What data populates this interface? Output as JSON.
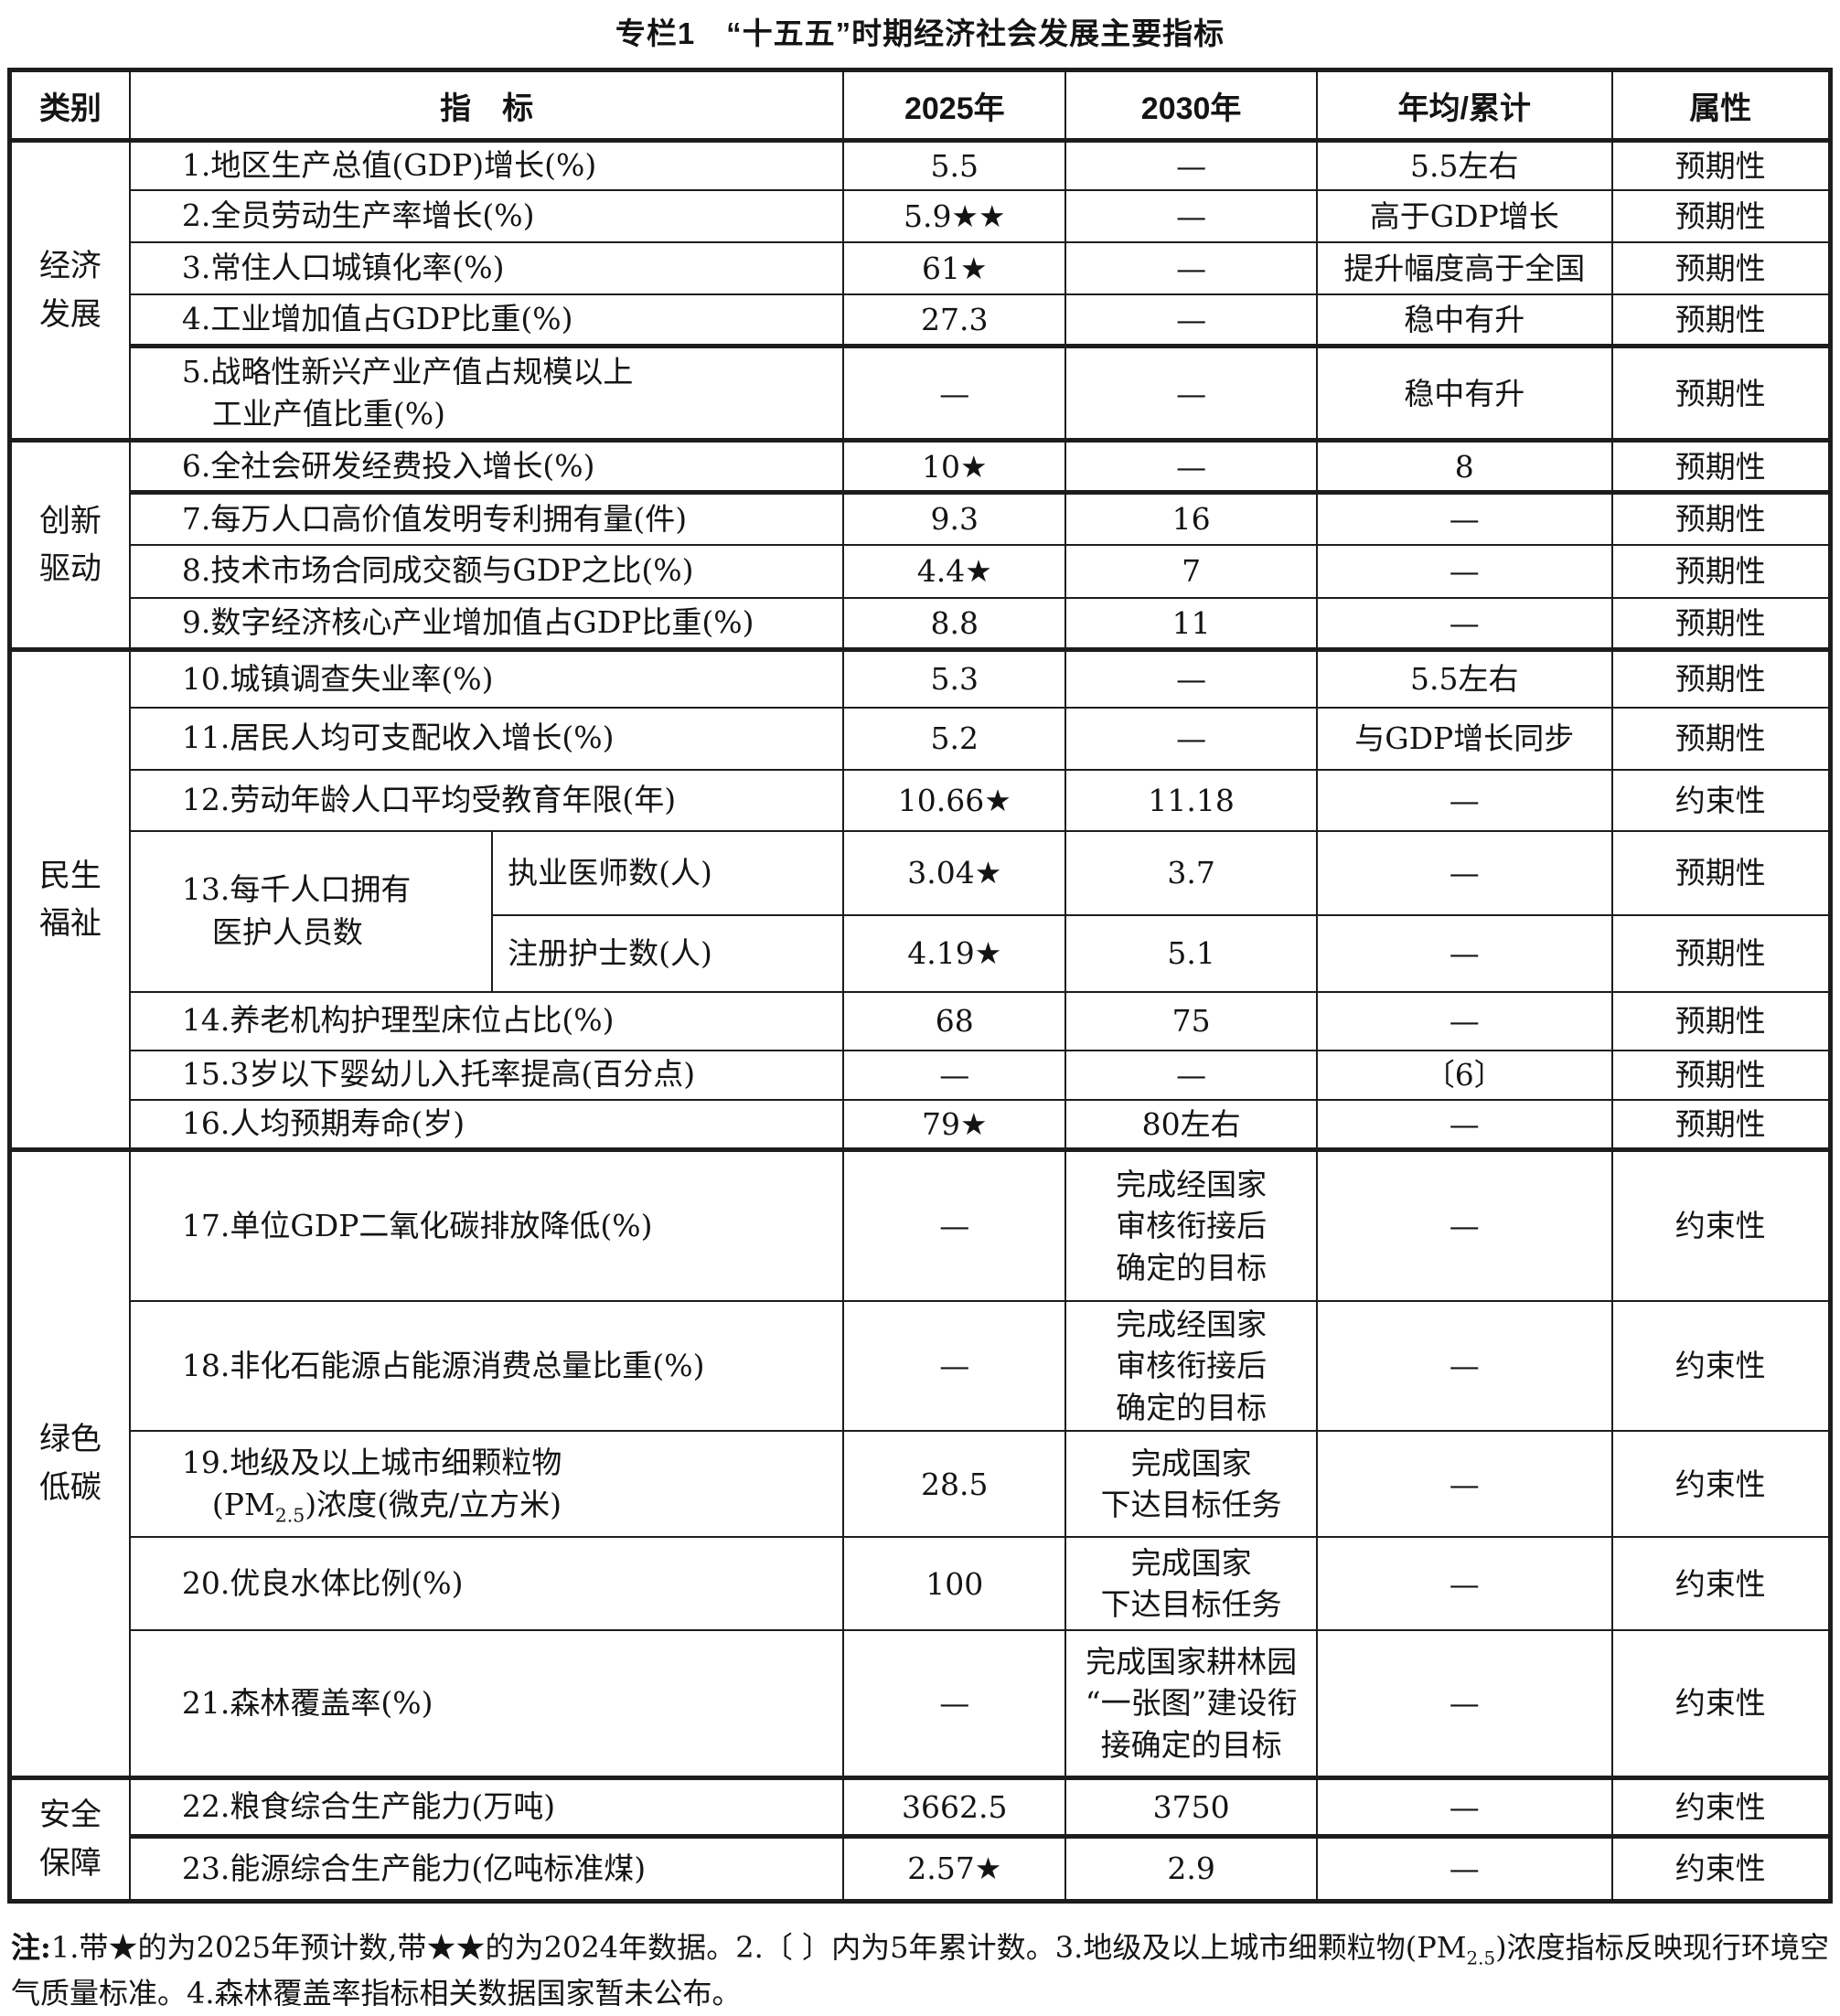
{
  "colors": {
    "background": "#ffffff",
    "text": "#141414",
    "border": "#1d1d1d"
  },
  "title": "专栏1　“十五五”时期经济社会发展主要指标",
  "header": {
    "category": "类别",
    "indicator": "指　标",
    "y2025": "2025年",
    "y2030": "2030年",
    "avg": "年均/累计",
    "attr": "属性"
  },
  "groups": [
    {
      "label": "经济\n发展"
    },
    {
      "label": "创新\n驱动"
    },
    {
      "label": "民生\n福祉"
    },
    {
      "label": "绿色\n低碳"
    },
    {
      "label": "安全\n保障"
    }
  ],
  "rows": [
    {
      "ind": "1.地区生产总值(GDP)增长(%)",
      "v2025": "5.5",
      "v2030": "—",
      "avg": "5.5左右",
      "attr": "预期性"
    },
    {
      "ind": "2.全员劳动生产率增长(%)",
      "v2025": "5.9★★",
      "v2030": "—",
      "avg": "高于GDP增长",
      "attr": "预期性"
    },
    {
      "ind": "3.常住人口城镇化率(%)",
      "v2025": "61★",
      "v2030": "—",
      "avg": "提升幅度高于全国",
      "attr": "预期性"
    },
    {
      "ind": "4.工业增加值占GDP比重(%)",
      "v2025": "27.3",
      "v2030": "—",
      "avg": "稳中有升",
      "attr": "预期性"
    },
    {
      "ind": "5.战略性新兴产业产值占规模以上\n　工业产值比重(%)",
      "v2025": "—",
      "v2030": "—",
      "avg": "稳中有升",
      "attr": "预期性"
    },
    {
      "ind": "6.全社会研发经费投入增长(%)",
      "v2025": "10★",
      "v2030": "—",
      "avg": "8",
      "attr": "预期性"
    },
    {
      "ind": "7.每万人口高价值发明专利拥有量(件)",
      "v2025": "9.3",
      "v2030": "16",
      "avg": "—",
      "attr": "预期性"
    },
    {
      "ind": "8.技术市场合同成交额与GDP之比(%)",
      "v2025": "4.4★",
      "v2030": "7",
      "avg": "—",
      "attr": "预期性"
    },
    {
      "ind": "9.数字经济核心产业增加值占GDP比重(%)",
      "v2025": "8.8",
      "v2030": "11",
      "avg": "—",
      "attr": "预期性"
    },
    {
      "ind": "10.城镇调查失业率(%)",
      "v2025": "5.3",
      "v2030": "—",
      "avg": "5.5左右",
      "attr": "预期性"
    },
    {
      "ind": "11.居民人均可支配收入增长(%)",
      "v2025": "5.2",
      "v2030": "—",
      "avg": "与GDP增长同步",
      "attr": "预期性"
    },
    {
      "ind": "12.劳动年龄人口平均受教育年限(年)",
      "v2025": "10.66★",
      "v2030": "11.18",
      "avg": "—",
      "attr": "约束性"
    },
    {
      "ind": "13.每千人口拥有\n　医护人员数",
      "sub": "执业医师数(人)",
      "v2025": "3.04★",
      "v2030": "3.7",
      "avg": "—",
      "attr": "预期性"
    },
    {
      "sub": "注册护士数(人)",
      "v2025": "4.19★",
      "v2030": "5.1",
      "avg": "—",
      "attr": "预期性"
    },
    {
      "ind": "14.养老机构护理型床位占比(%)",
      "v2025": "68",
      "v2030": "75",
      "avg": "—",
      "attr": "预期性"
    },
    {
      "ind": "15.3岁以下婴幼儿入托率提高(百分点)",
      "v2025": "—",
      "v2030": "—",
      "avg": "〔6〕",
      "attr": "预期性"
    },
    {
      "ind": "16.人均预期寿命(岁)",
      "v2025": "79★",
      "v2030": "80左右",
      "avg": "—",
      "attr": "预期性"
    },
    {
      "ind": "17.单位GDP二氧化碳排放降低(%)",
      "v2025": "—",
      "v2030": "完成经国家\n审核衔接后\n确定的目标",
      "avg": "—",
      "attr": "约束性"
    },
    {
      "ind": "18.非化石能源占能源消费总量比重(%)",
      "v2025": "—",
      "v2030": "完成经国家\n审核衔接后\n确定的目标",
      "avg": "—",
      "attr": "约束性"
    },
    {
      "ind": "19.地级及以上城市细颗粒物\n　(PM{sub:2.5})浓度(微克/立方米)",
      "v2025": "28.5",
      "v2030": "完成国家\n下达目标任务",
      "avg": "—",
      "attr": "约束性"
    },
    {
      "ind": "20.优良水体比例(%)",
      "v2025": "100",
      "v2030": "完成国家\n下达目标任务",
      "avg": "—",
      "attr": "约束性"
    },
    {
      "ind": "21.森林覆盖率(%)",
      "v2025": "—",
      "v2030": "完成国家耕林园\n“一张图”建设衔\n接确定的目标",
      "avg": "—",
      "attr": "约束性"
    },
    {
      "ind": "22.粮食综合生产能力(万吨)",
      "v2025": "3662.5",
      "v2030": "3750",
      "avg": "—",
      "attr": "约束性"
    },
    {
      "ind": "23.能源综合生产能力(亿吨标准煤)",
      "v2025": "2.57★",
      "v2030": "2.9",
      "avg": "—",
      "attr": "约束性"
    }
  ],
  "notes": {
    "label": "注:",
    "text": "1.带★的为2025年预计数,带★★的为2024年数据。2.〔 〕内为5年累计数。3.地级及以上城市细颗粒物(PM{sub:2.5})浓度指标反映现行环境空气质量标准。4.森林覆盖率指标相关数据国家暂未公布。"
  }
}
